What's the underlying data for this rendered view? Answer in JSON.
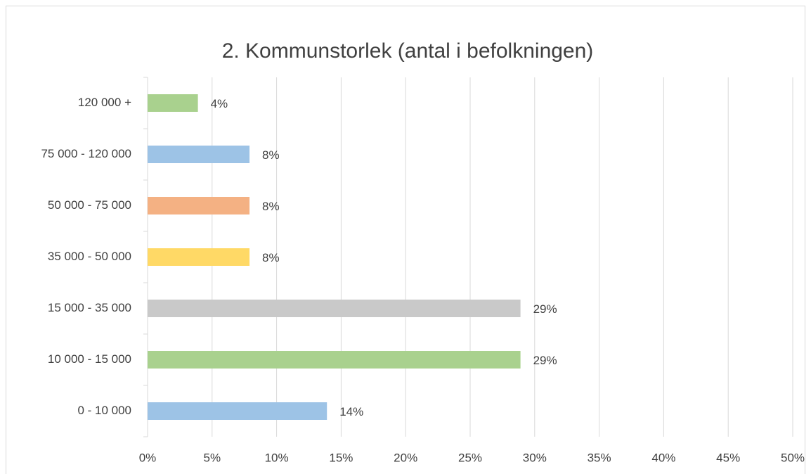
{
  "chart_data": {
    "type": "hbar",
    "title": "2. Kommunstorlek (antal i befolkningen)",
    "categories": [
      "120 000 +",
      "75 000 - 120 000",
      "50 000 - 75 000",
      "35 000 - 50 000",
      "15 000 - 35 000",
      "10 000 - 15 000",
      "0 - 10 000"
    ],
    "values": [
      3.9,
      7.9,
      7.9,
      7.9,
      28.9,
      28.9,
      13.9
    ],
    "value_labels": [
      "4%",
      "8%",
      "8%",
      "8%",
      "29%",
      "29%",
      "14%"
    ],
    "colors": [
      "#a9d18e",
      "#9dc3e6",
      "#f4b183",
      "#ffd966",
      "#c9c9c9",
      "#a9d18e",
      "#9dc3e6"
    ],
    "xlim": [
      0,
      50
    ],
    "xticks": [
      {
        "value": 0,
        "label": "0%"
      },
      {
        "value": 5,
        "label": "5%"
      },
      {
        "value": 10,
        "label": "10%"
      },
      {
        "value": 15,
        "label": "15%"
      },
      {
        "value": 20,
        "label": "20%"
      },
      {
        "value": 25,
        "label": "25%"
      },
      {
        "value": 30,
        "label": "30%"
      },
      {
        "value": 35,
        "label": "35%"
      },
      {
        "value": 40,
        "label": "40%"
      },
      {
        "value": 45,
        "label": "45%"
      },
      {
        "value": 50,
        "label": "50%"
      }
    ],
    "grid": true
  }
}
